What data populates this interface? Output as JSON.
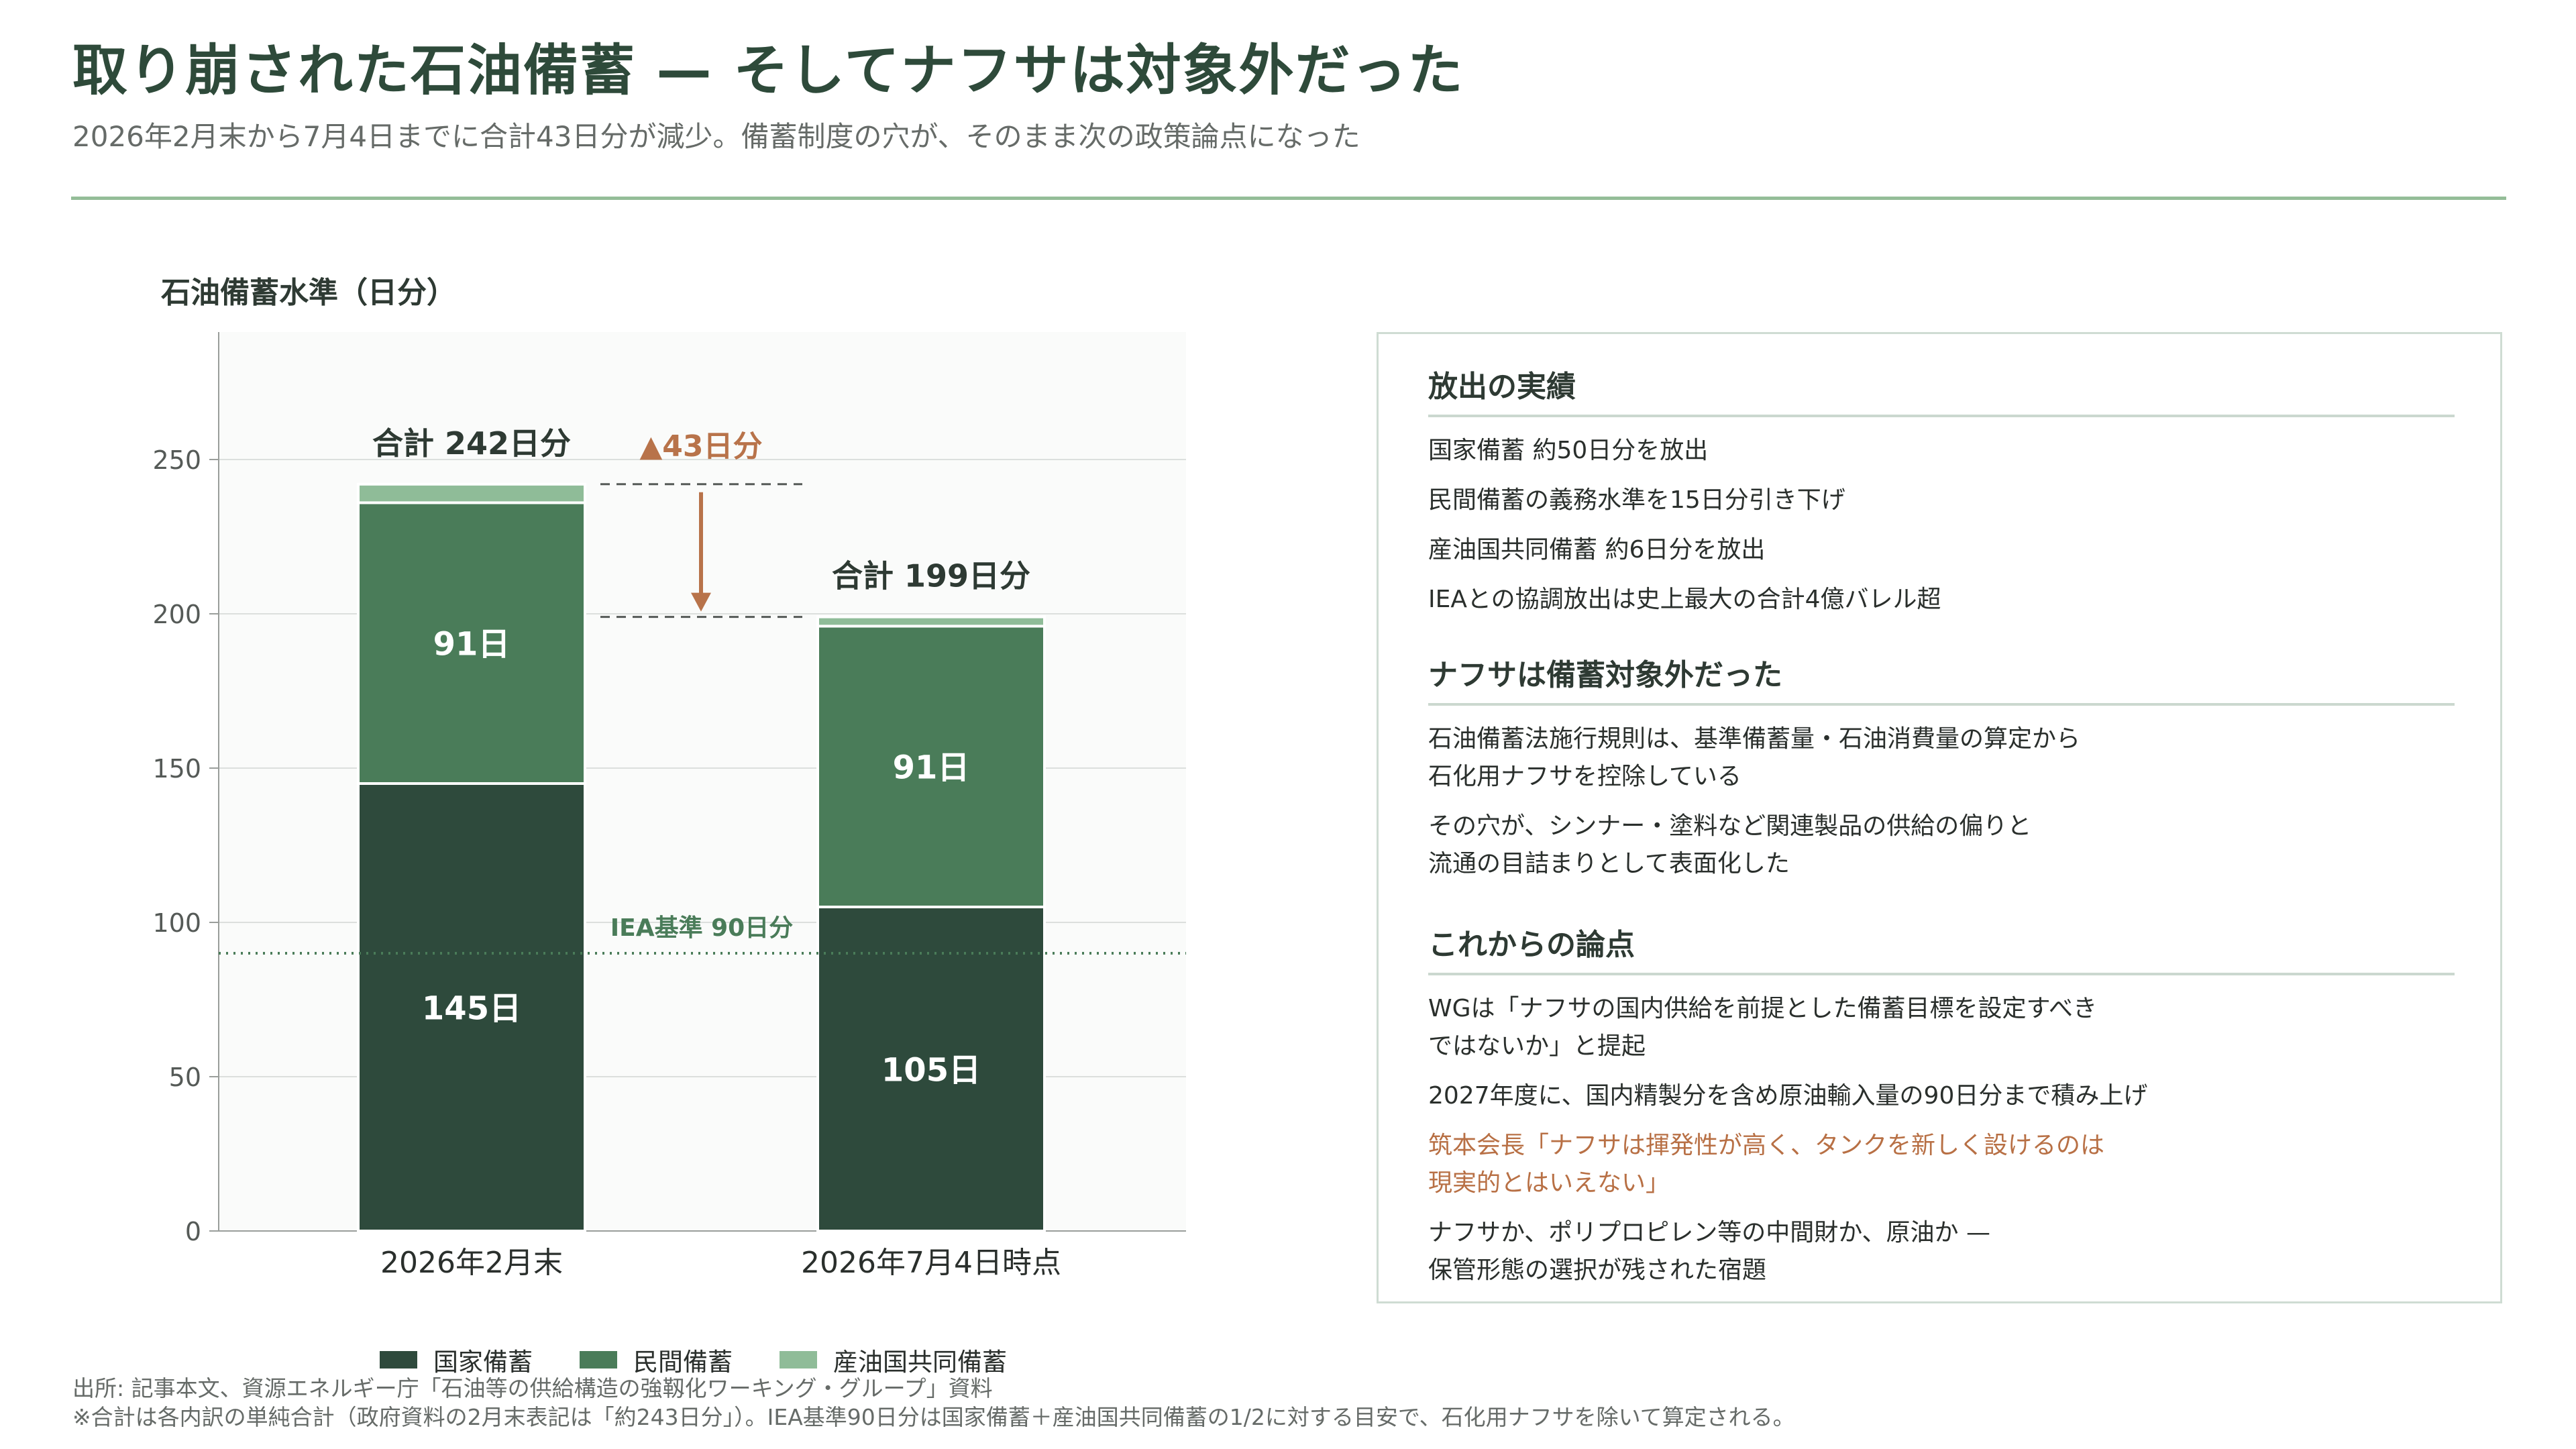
{
  "header": {
    "title": "取り崩された石油備蓄 — そしてナフサは対象外だった",
    "subtitle": "2026年2月末から7月4日までに合計43日分が減少。備蓄制度の穴が、そのまま次の政策論点になった"
  },
  "chart_title": "石油備蓄水準（日分）",
  "chart_data": {
    "type": "bar",
    "stacked": true,
    "categories": [
      "2026年2月末",
      "2026年7月4日時点"
    ],
    "series": [
      {
        "name": "国家備蓄",
        "values": [
          145,
          105
        ],
        "labels": [
          "145日",
          "105日"
        ],
        "color": "#2e4a3c"
      },
      {
        "name": "民間備蓄",
        "values": [
          91,
          91
        ],
        "labels": [
          "91日",
          "91日"
        ],
        "color": "#4a7c59"
      },
      {
        "name": "産油国共同備蓄",
        "values": [
          6,
          3
        ],
        "labels": [
          "",
          ""
        ],
        "color": "#8fbc98"
      }
    ],
    "totals": [
      "合計 242日分",
      "合計 199日分"
    ],
    "total_values": [
      242,
      199
    ],
    "yticks": [
      0,
      50,
      100,
      150,
      200,
      250
    ],
    "ylim": [
      0,
      290
    ],
    "reference_line": {
      "value": 90,
      "label": "IEA基準 90日分",
      "color": "#4a7c59"
    },
    "decrease_annotation": {
      "label": "▲43日分",
      "color": "#b8734a",
      "from": 242,
      "to": 199
    },
    "grid": true,
    "legend_position": "bottom"
  },
  "panel": {
    "sections": [
      {
        "heading": "放出の実績",
        "items": [
          {
            "lines": [
              "国家備蓄 約50日分を放出"
            ],
            "accent": false
          },
          {
            "lines": [
              "民間備蓄の義務水準を15日分引き下げ"
            ],
            "accent": false
          },
          {
            "lines": [
              "産油国共同備蓄 約6日分を放出"
            ],
            "accent": false
          },
          {
            "lines": [
              "IEAとの協調放出は史上最大の合計4億バレル超"
            ],
            "accent": false
          }
        ]
      },
      {
        "heading": "ナフサは備蓄対象外だった",
        "items": [
          {
            "lines": [
              "石油備蓄法施行規則は、基準備蓄量・石油消費量の算定から",
              "石化用ナフサを控除している"
            ],
            "accent": false
          },
          {
            "lines": [
              "その穴が、シンナー・塗料など関連製品の供給の偏りと",
              "流通の目詰まりとして表面化した"
            ],
            "accent": false
          }
        ]
      },
      {
        "heading": "これからの論点",
        "items": [
          {
            "lines": [
              "WGは「ナフサの国内供給を前提とした備蓄目標を設定すべき",
              "ではないか」と提起"
            ],
            "accent": false
          },
          {
            "lines": [
              "2027年度に、国内精製分を含め原油輸入量の90日分まで積み上げ"
            ],
            "accent": false
          },
          {
            "lines": [
              "筑本会長「ナフサは揮発性が高く、タンクを新しく設けるのは",
              "現実的とはいえない」"
            ],
            "accent": true
          },
          {
            "lines": [
              "ナフサか、ポリプロピレン等の中間財か、原油か —",
              "保管形態の選択が残された宿題"
            ],
            "accent": false
          }
        ]
      }
    ]
  },
  "source": {
    "line1": "出所: 記事本文、資源エネルギー庁「石油等の供給構造の強靱化ワーキング・グループ」資料",
    "line2": "※合計は各内訳の単純合計（政府資料の2月末表記は「約243日分」）。IEA基準90日分は国家備蓄＋産油国共同備蓄の1/2に対する目安で、石化用ナフサを除いて算定される。"
  }
}
